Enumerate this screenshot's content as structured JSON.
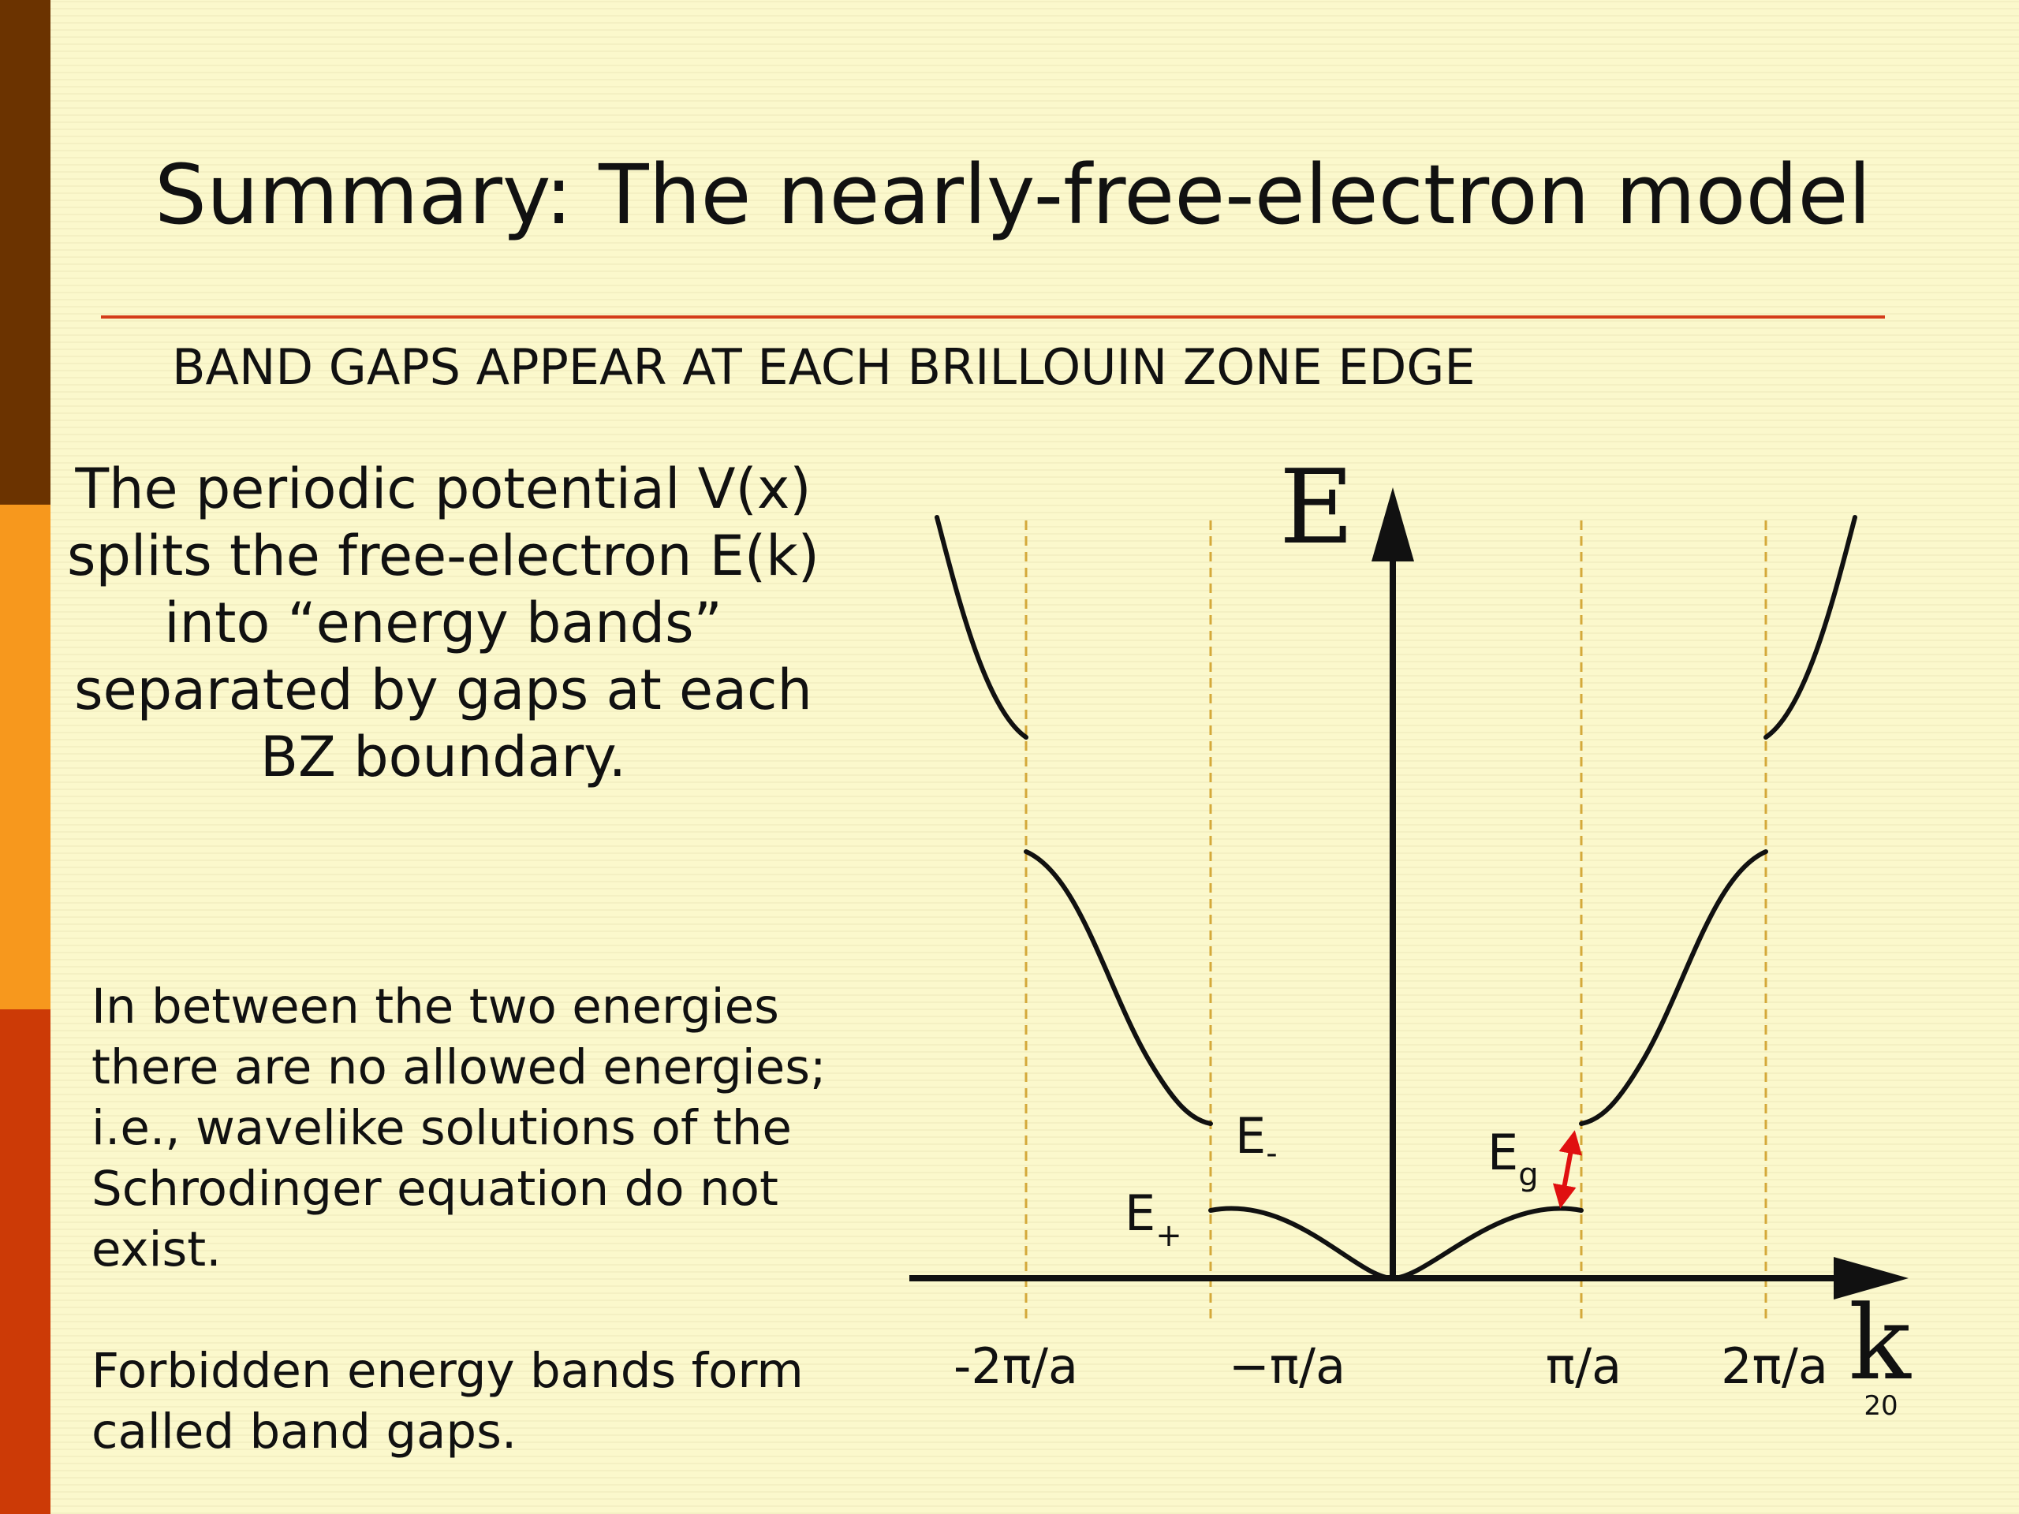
{
  "slide": {
    "title": "Summary: The nearly-free-electron model",
    "subtitle": "BAND GAPS APPEAR AT EACH BRILLOUIN ZONE EDGE",
    "paragraphs": [
      "The periodic potential V(x) splits the free-electron E(k) into “energy bands” separated by gaps at each BZ boundary.",
      "In between the two energies there are no allowed energies; i.e., wavelike solutions of the Schrodinger equation do not exist.",
      "Forbidden energy bands form called band gaps."
    ],
    "slide_number": "20"
  },
  "colors": {
    "background": "#fbf8cc",
    "sidebar": [
      "#6b3300",
      "#f7981d",
      "#cc3a06"
    ],
    "rule": "#d43c1a",
    "gap_arrow": "#e01010",
    "zone_lines": "#d4a93a"
  },
  "diagram": {
    "axis_labels": {
      "energy": "E",
      "wavevector": "k"
    },
    "k_ticks": [
      "-2π/a",
      "−π/a",
      "π/a",
      "2π/a"
    ],
    "band_labels": {
      "minus_main": "E",
      "minus_sub": "-",
      "plus_main": "E",
      "plus_sub": "+",
      "gap_main": "E",
      "gap_sub": "g"
    }
  }
}
